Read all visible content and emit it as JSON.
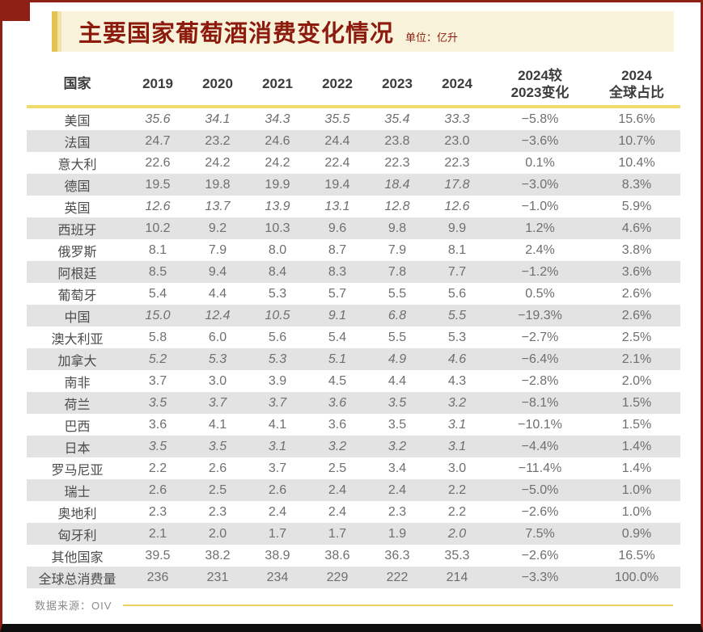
{
  "header": {
    "title": "主要国家葡萄酒消费变化情况",
    "unit": "单位：亿升"
  },
  "footer": {
    "source": "数据来源：OIV"
  },
  "accent_colors": {
    "frame_red": "#8e2016",
    "title_red": "#8c1b0e",
    "gold_bar": "#e6c253",
    "cream_bg": "#faf3dc",
    "divider_yellow": "#f2dc69",
    "stripe_gray": "#e3e3e3"
  },
  "chart_data": {
    "type": "table",
    "title": "主要国家葡萄酒消费变化情况",
    "unit_label": "单位：亿升",
    "source": "数据来源：OIV",
    "columns": [
      "国家",
      "2019",
      "2020",
      "2021",
      "2022",
      "2023",
      "2024",
      "2024较\n2023变化",
      "2024\n全球占比"
    ],
    "rows": [
      {
        "country": "美国",
        "values": [
          "35.6",
          "34.1",
          "34.3",
          "35.5",
          "35.4",
          "33.3"
        ],
        "italics": [
          1,
          1,
          1,
          1,
          1,
          1
        ],
        "change": "−5.8%",
        "share": "15.6%"
      },
      {
        "country": "法国",
        "values": [
          "24.7",
          "23.2",
          "24.6",
          "24.4",
          "23.8",
          "23.0"
        ],
        "italics": [
          0,
          0,
          0,
          0,
          0,
          0
        ],
        "change": "−3.6%",
        "share": "10.7%"
      },
      {
        "country": "意大利",
        "values": [
          "22.6",
          "24.2",
          "24.2",
          "22.4",
          "22.3",
          "22.3"
        ],
        "italics": [
          0,
          0,
          0,
          0,
          0,
          0
        ],
        "change": "0.1%",
        "share": "10.4%"
      },
      {
        "country": "德国",
        "values": [
          "19.5",
          "19.8",
          "19.9",
          "19.4",
          "18.4",
          "17.8"
        ],
        "italics": [
          0,
          0,
          0,
          0,
          1,
          1
        ],
        "change": "−3.0%",
        "share": "8.3%"
      },
      {
        "country": "英国",
        "values": [
          "12.6",
          "13.7",
          "13.9",
          "13.1",
          "12.8",
          "12.6"
        ],
        "italics": [
          1,
          1,
          1,
          1,
          1,
          1
        ],
        "change": "−1.0%",
        "share": "5.9%"
      },
      {
        "country": "西班牙",
        "values": [
          "10.2",
          "9.2",
          "10.3",
          "9.6",
          "9.8",
          "9.9"
        ],
        "italics": [
          0,
          0,
          0,
          0,
          0,
          0
        ],
        "change": "1.2%",
        "share": "4.6%"
      },
      {
        "country": "俄罗斯",
        "values": [
          "8.1",
          "7.9",
          "8.0",
          "8.7",
          "7.9",
          "8.1"
        ],
        "italics": [
          0,
          0,
          0,
          0,
          0,
          0
        ],
        "change": "2.4%",
        "share": "3.8%"
      },
      {
        "country": "阿根廷",
        "values": [
          "8.5",
          "9.4",
          "8.4",
          "8.3",
          "7.8",
          "7.7"
        ],
        "italics": [
          0,
          0,
          0,
          0,
          0,
          0
        ],
        "change": "−1.2%",
        "share": "3.6%"
      },
      {
        "country": "葡萄牙",
        "values": [
          "5.4",
          "4.4",
          "5.3",
          "5.7",
          "5.5",
          "5.6"
        ],
        "italics": [
          0,
          0,
          0,
          0,
          0,
          0
        ],
        "change": "0.5%",
        "share": "2.6%"
      },
      {
        "country": "中国",
        "values": [
          "15.0",
          "12.4",
          "10.5",
          "9.1",
          "6.8",
          "5.5"
        ],
        "italics": [
          1,
          1,
          1,
          1,
          1,
          1
        ],
        "change": "−19.3%",
        "share": "2.6%"
      },
      {
        "country": "澳大利亚",
        "values": [
          "5.8",
          "6.0",
          "5.6",
          "5.4",
          "5.5",
          "5.3"
        ],
        "italics": [
          0,
          0,
          0,
          0,
          0,
          0
        ],
        "change": "−2.7%",
        "share": "2.5%"
      },
      {
        "country": "加拿大",
        "values": [
          "5.2",
          "5.3",
          "5.3",
          "5.1",
          "4.9",
          "4.6"
        ],
        "italics": [
          1,
          1,
          1,
          1,
          1,
          1
        ],
        "change": "−6.4%",
        "share": "2.1%"
      },
      {
        "country": "南非",
        "values": [
          "3.7",
          "3.0",
          "3.9",
          "4.5",
          "4.4",
          "4.3"
        ],
        "italics": [
          0,
          0,
          0,
          0,
          0,
          0
        ],
        "change": "−2.8%",
        "share": "2.0%"
      },
      {
        "country": "荷兰",
        "values": [
          "3.5",
          "3.7",
          "3.7",
          "3.6",
          "3.5",
          "3.2"
        ],
        "italics": [
          1,
          1,
          1,
          1,
          1,
          1
        ],
        "change": "−8.1%",
        "share": "1.5%"
      },
      {
        "country": "巴西",
        "values": [
          "3.6",
          "4.1",
          "4.1",
          "3.6",
          "3.5",
          "3.1"
        ],
        "italics": [
          0,
          0,
          0,
          0,
          0,
          1
        ],
        "change": "−10.1%",
        "share": "1.5%"
      },
      {
        "country": "日本",
        "values": [
          "3.5",
          "3.5",
          "3.1",
          "3.2",
          "3.2",
          "3.1"
        ],
        "italics": [
          1,
          1,
          1,
          1,
          1,
          1
        ],
        "change": "−4.4%",
        "share": "1.4%"
      },
      {
        "country": "罗马尼亚",
        "values": [
          "2.2",
          "2.6",
          "3.7",
          "2.5",
          "3.4",
          "3.0"
        ],
        "italics": [
          0,
          0,
          0,
          0,
          0,
          0
        ],
        "change": "−11.4%",
        "share": "1.4%"
      },
      {
        "country": "瑞士",
        "values": [
          "2.6",
          "2.5",
          "2.6",
          "2.4",
          "2.4",
          "2.2"
        ],
        "italics": [
          0,
          0,
          0,
          0,
          0,
          0
        ],
        "change": "−5.0%",
        "share": "1.0%"
      },
      {
        "country": "奥地利",
        "values": [
          "2.3",
          "2.3",
          "2.4",
          "2.4",
          "2.3",
          "2.2"
        ],
        "italics": [
          0,
          0,
          0,
          0,
          0,
          0
        ],
        "change": "−2.6%",
        "share": "1.0%"
      },
      {
        "country": "匈牙利",
        "values": [
          "2.1",
          "2.0",
          "1.7",
          "1.7",
          "1.9",
          "2.0"
        ],
        "italics": [
          0,
          0,
          0,
          0,
          0,
          1
        ],
        "change": "7.5%",
        "share": "0.9%"
      },
      {
        "country": "其他国家",
        "values": [
          "39.5",
          "38.2",
          "38.9",
          "38.6",
          "36.3",
          "35.3"
        ],
        "italics": [
          0,
          0,
          0,
          0,
          0,
          0
        ],
        "change": "−2.6%",
        "share": "16.5%"
      },
      {
        "country": "全球总消费量",
        "values": [
          "236",
          "231",
          "234",
          "229",
          "222",
          "214"
        ],
        "italics": [
          0,
          0,
          0,
          0,
          0,
          0
        ],
        "change": "−3.3%",
        "share": "100.0%"
      }
    ]
  }
}
